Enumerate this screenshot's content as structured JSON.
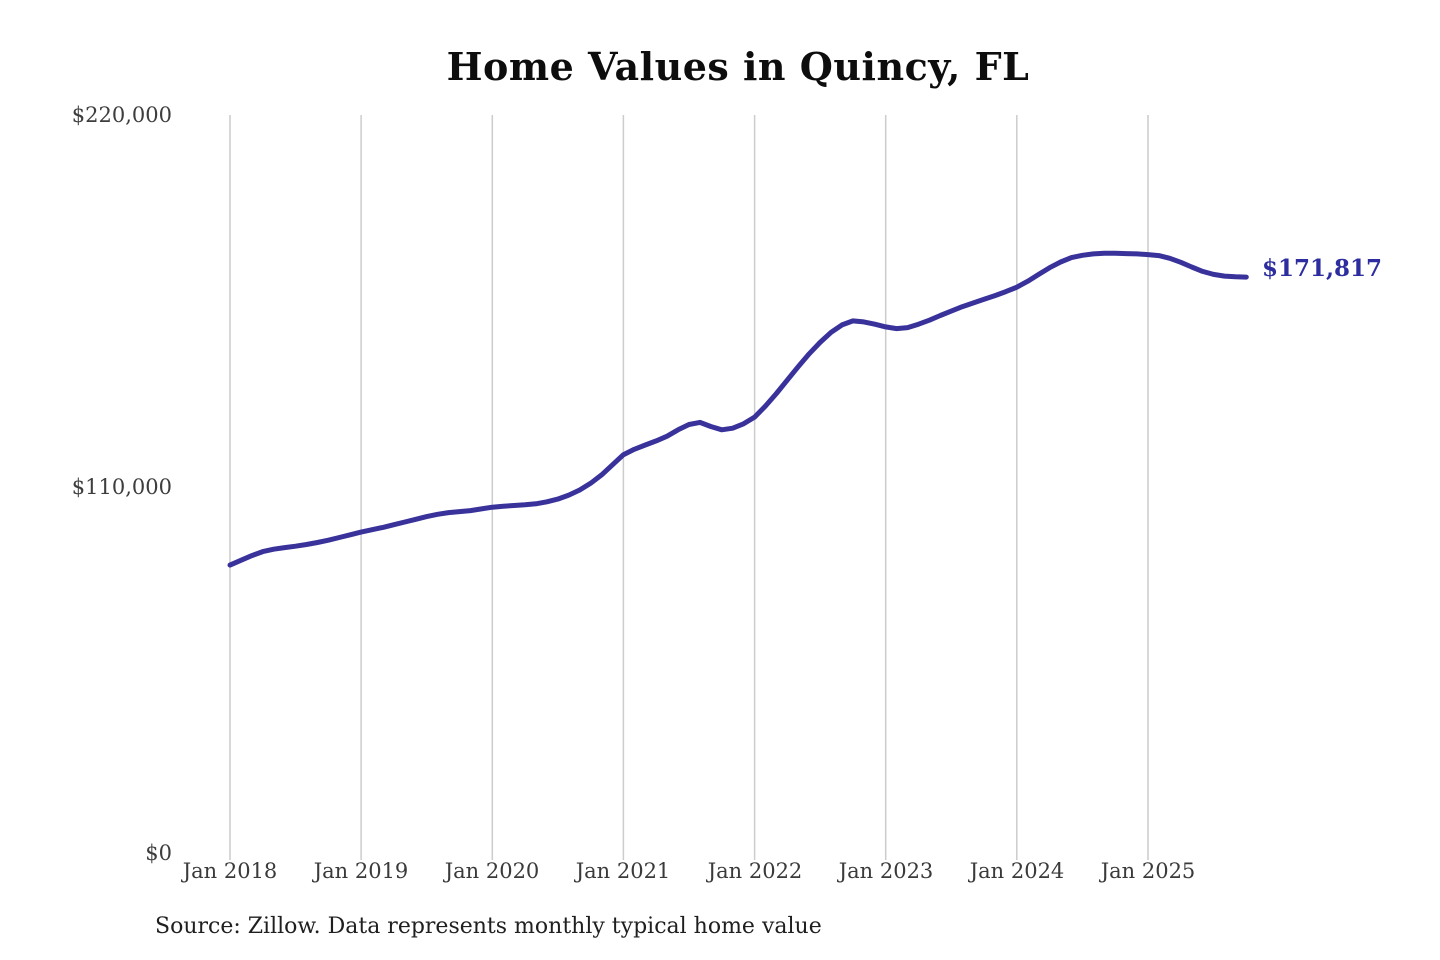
{
  "chart_data": {
    "type": "line",
    "title": "Home Values in Quincy, FL",
    "source": "Source: Zillow. Data represents monthly typical home value",
    "end_label": "$171,817",
    "latest_value": 171817,
    "frequency": "monthly",
    "x_start": "Jan 2018",
    "x_end": "Oct 2025",
    "x_ticks": [
      "Jan 2018",
      "Jan 2019",
      "Jan 2020",
      "Jan 2021",
      "Jan 2022",
      "Jan 2023",
      "Jan 2024",
      "Jan 2025"
    ],
    "y_ticks": [
      "$220,000",
      "$110,000",
      "$0"
    ],
    "y_tick_values": [
      220000,
      110000,
      0
    ],
    "ylim": [
      0,
      220000
    ],
    "grid": "vertical-only",
    "legend": "none",
    "series": [
      {
        "name": "Typical home value",
        "values": [
          86200,
          87600,
          89000,
          90200,
          90900,
          91400,
          91800,
          92300,
          92900,
          93600,
          94400,
          95200,
          96000,
          96700,
          97400,
          98200,
          99000,
          99800,
          100600,
          101300,
          101800,
          102100,
          102400,
          102900,
          103400,
          103700,
          103900,
          104100,
          104400,
          105000,
          105800,
          107000,
          108500,
          110500,
          113000,
          116000,
          119000,
          120600,
          121900,
          123100,
          124500,
          126400,
          128000,
          128600,
          127400,
          126400,
          126900,
          128200,
          130200,
          133500,
          137200,
          141200,
          145200,
          149000,
          152400,
          155400,
          157600,
          158800,
          158500,
          157800,
          157000,
          156500,
          156800,
          157800,
          159000,
          160400,
          161700,
          163000,
          164100,
          165200,
          166300,
          167500,
          168800,
          170600,
          172600,
          174600,
          176300,
          177600,
          178300,
          178700,
          178900,
          178900,
          178800,
          178700,
          178500,
          178200,
          177400,
          176200,
          174800,
          173500,
          172600,
          172100,
          171900,
          171817
        ]
      }
    ],
    "colors": {
      "line": "#39329b",
      "end_label": "#2d2da0",
      "grid": "#cccccc",
      "axis_text": "#3d3d3d",
      "title_text": "#0d0d0d"
    }
  }
}
